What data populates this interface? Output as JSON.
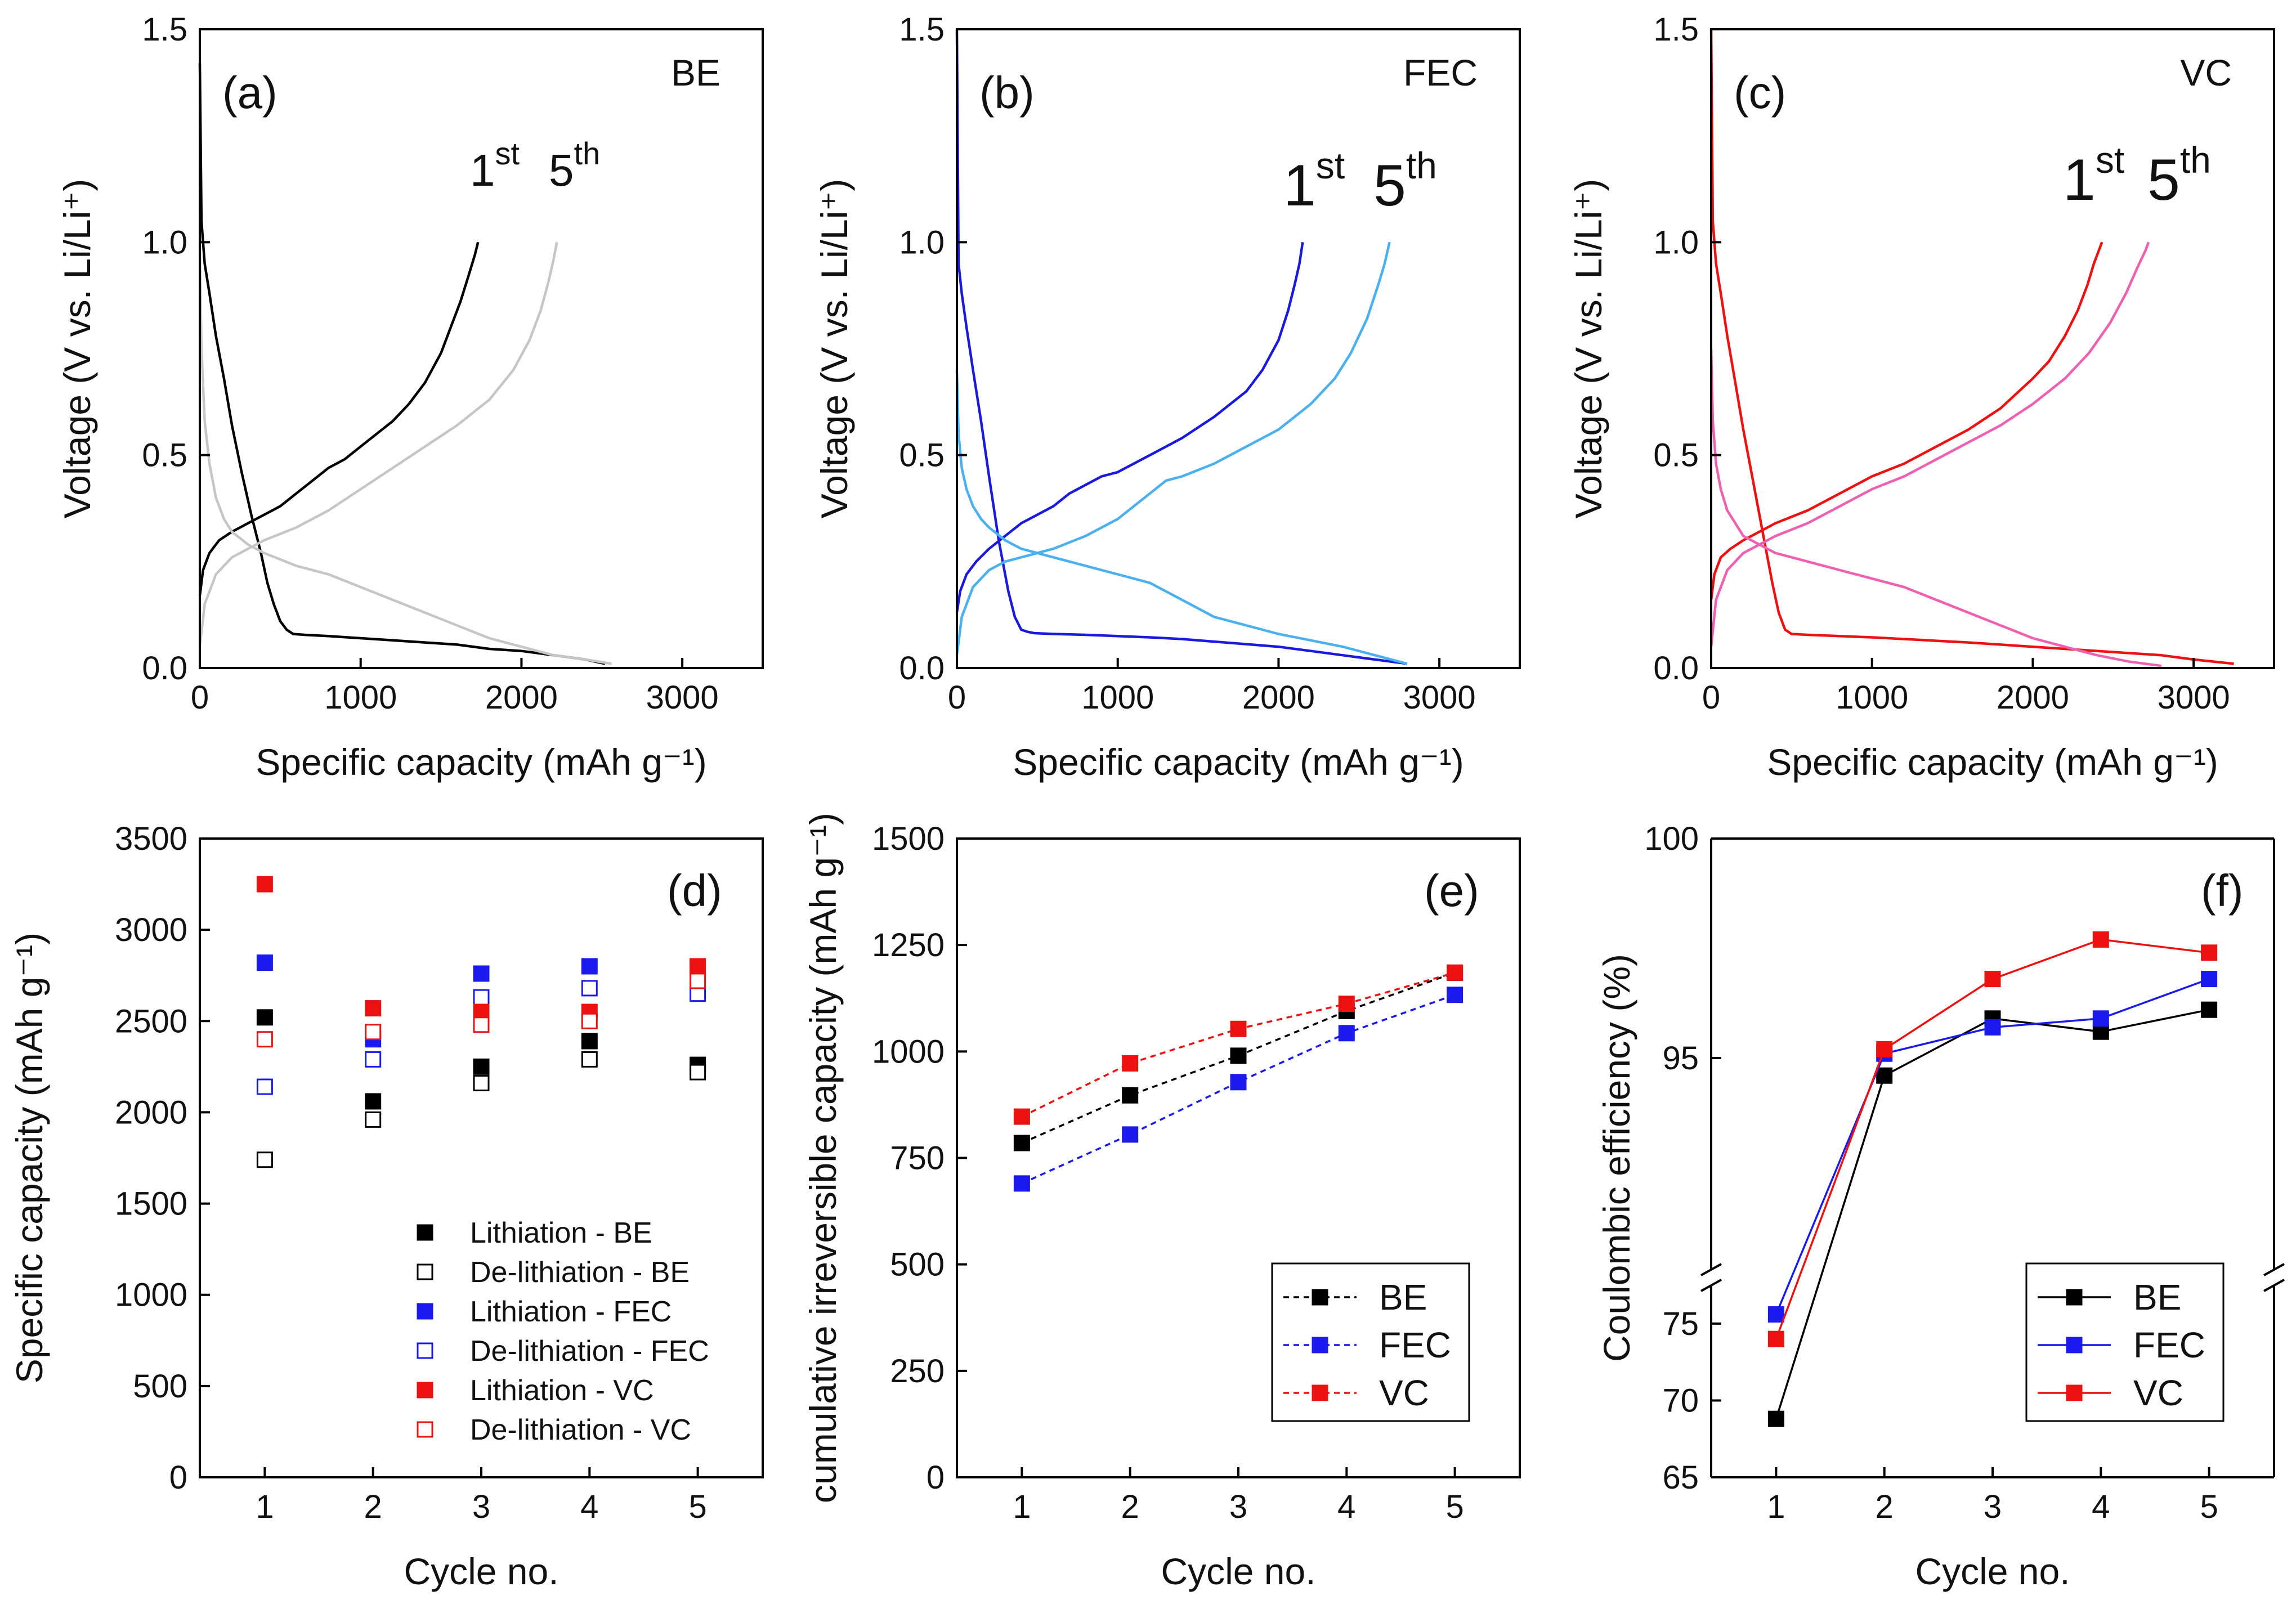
{
  "panels": {
    "a": {
      "type": "line",
      "label": "(a)",
      "tag": "BE",
      "xlabel": "Specific capacity (mAh g⁻¹)",
      "ylabel": "Voltage (V vs. Li/Li⁺)",
      "xlim": [
        0,
        3500
      ],
      "ylim": [
        0,
        1.5
      ],
      "xticks": [
        0,
        1000,
        2000,
        3000
      ],
      "yticks": [
        0.0,
        0.5,
        1.0,
        1.5
      ],
      "cycle_labels": [
        {
          "base": "1",
          "sup": "st",
          "color": "#000000"
        },
        {
          "base": "5",
          "sup": "th",
          "color": "#9a9a9a"
        }
      ],
      "series": [
        {
          "name": "1st lithiation",
          "color": "#000000",
          "x": [
            0,
            10,
            30,
            60,
            100,
            150,
            200,
            260,
            320,
            380,
            420,
            460,
            500,
            540,
            580,
            650,
            800,
            1000,
            1200,
            1400,
            1600,
            1800,
            2000,
            2200,
            2400,
            2520
          ],
          "y": [
            1.42,
            1.05,
            0.95,
            0.88,
            0.78,
            0.68,
            0.57,
            0.46,
            0.36,
            0.27,
            0.2,
            0.15,
            0.11,
            0.09,
            0.08,
            0.078,
            0.075,
            0.07,
            0.065,
            0.06,
            0.055,
            0.045,
            0.04,
            0.03,
            0.02,
            0.01
          ]
        },
        {
          "name": "1st delithiation",
          "color": "#000000",
          "x": [
            0,
            20,
            60,
            120,
            200,
            300,
            400,
            500,
            600,
            700,
            800,
            900,
            1000,
            1100,
            1200,
            1300,
            1400,
            1500,
            1560,
            1620,
            1670,
            1710,
            1730
          ],
          "y": [
            0.17,
            0.23,
            0.27,
            0.3,
            0.32,
            0.34,
            0.36,
            0.38,
            0.41,
            0.44,
            0.47,
            0.49,
            0.52,
            0.55,
            0.58,
            0.62,
            0.67,
            0.74,
            0.8,
            0.86,
            0.92,
            0.97,
            1.0
          ]
        },
        {
          "name": "5th lithiation",
          "color": "#c6c6c6",
          "x": [
            0,
            10,
            30,
            60,
            100,
            150,
            200,
            300,
            400,
            500,
            600,
            800,
            1000,
            1200,
            1400,
            1600,
            1800,
            2000,
            2200,
            2400,
            2560
          ],
          "y": [
            1.0,
            0.75,
            0.58,
            0.48,
            0.4,
            0.35,
            0.32,
            0.29,
            0.27,
            0.255,
            0.24,
            0.22,
            0.19,
            0.16,
            0.13,
            0.1,
            0.07,
            0.05,
            0.03,
            0.02,
            0.01
          ]
        },
        {
          "name": "5th delithiation",
          "color": "#c6c6c6",
          "x": [
            0,
            30,
            100,
            200,
            300,
            400,
            600,
            800,
            1000,
            1200,
            1400,
            1600,
            1800,
            1950,
            2050,
            2120,
            2170,
            2200,
            2220
          ],
          "y": [
            0.05,
            0.15,
            0.22,
            0.26,
            0.28,
            0.3,
            0.33,
            0.37,
            0.42,
            0.47,
            0.52,
            0.57,
            0.63,
            0.7,
            0.77,
            0.84,
            0.91,
            0.96,
            1.0
          ]
        }
      ]
    },
    "b": {
      "type": "line",
      "label": "(b)",
      "tag": "FEC",
      "xlabel": "Specific capacity (mAh g⁻¹)",
      "ylabel": "Voltage (V vs. Li/Li⁺)",
      "xlim": [
        0,
        3500
      ],
      "ylim": [
        0,
        1.5
      ],
      "xticks": [
        0,
        1000,
        2000,
        3000
      ],
      "yticks": [
        0.0,
        0.5,
        1.0,
        1.5
      ],
      "cycle_labels": [
        {
          "base": "1",
          "sup": "st",
          "color": "#1a1adf"
        },
        {
          "base": "5",
          "sup": "th",
          "color": "#4bb0f0"
        }
      ],
      "series": [
        {
          "name": "1st lithiation",
          "color": "#1a1adf",
          "x": [
            0,
            10,
            30,
            60,
            100,
            150,
            200,
            260,
            320,
            360,
            400,
            440,
            480,
            600,
            800,
            1000,
            1200,
            1400,
            1600,
            1800,
            2000,
            2200,
            2400,
            2600,
            2800
          ],
          "y": [
            1.5,
            0.95,
            0.88,
            0.8,
            0.7,
            0.58,
            0.45,
            0.3,
            0.18,
            0.12,
            0.09,
            0.085,
            0.082,
            0.08,
            0.078,
            0.075,
            0.072,
            0.068,
            0.062,
            0.056,
            0.05,
            0.04,
            0.03,
            0.02,
            0.01
          ]
        },
        {
          "name": "1st delithiation",
          "color": "#1a1adf",
          "x": [
            0,
            20,
            60,
            120,
            200,
            300,
            400,
            500,
            600,
            700,
            800,
            900,
            1000,
            1200,
            1400,
            1600,
            1800,
            1900,
            2000,
            2060,
            2100,
            2130,
            2150
          ],
          "y": [
            0.13,
            0.18,
            0.22,
            0.25,
            0.28,
            0.31,
            0.34,
            0.36,
            0.38,
            0.41,
            0.43,
            0.45,
            0.46,
            0.5,
            0.54,
            0.59,
            0.65,
            0.7,
            0.77,
            0.84,
            0.9,
            0.95,
            1.0
          ]
        },
        {
          "name": "5th lithiation",
          "color": "#4bb0f0",
          "x": [
            0,
            10,
            30,
            60,
            100,
            150,
            200,
            300,
            400,
            500,
            600,
            800,
            1000,
            1200,
            1400,
            1600,
            1800,
            2000,
            2200,
            2400,
            2600,
            2800
          ],
          "y": [
            0.7,
            0.55,
            0.47,
            0.42,
            0.38,
            0.35,
            0.33,
            0.3,
            0.28,
            0.27,
            0.26,
            0.24,
            0.22,
            0.2,
            0.16,
            0.12,
            0.1,
            0.08,
            0.065,
            0.05,
            0.03,
            0.01
          ]
        },
        {
          "name": "5th delithiation",
          "color": "#4bb0f0",
          "x": [
            0,
            30,
            100,
            200,
            300,
            400,
            600,
            800,
            1000,
            1200,
            1300,
            1400,
            1600,
            1800,
            2000,
            2200,
            2350,
            2450,
            2550,
            2620,
            2660,
            2690
          ],
          "y": [
            0.03,
            0.12,
            0.19,
            0.23,
            0.25,
            0.26,
            0.28,
            0.31,
            0.35,
            0.41,
            0.44,
            0.45,
            0.48,
            0.52,
            0.56,
            0.62,
            0.68,
            0.74,
            0.82,
            0.9,
            0.95,
            1.0
          ]
        }
      ]
    },
    "c": {
      "type": "line",
      "label": "(c)",
      "tag": "VC",
      "xlabel": "Specific capacity (mAh g⁻¹)",
      "ylabel": "Voltage (V vs. Li/Li⁺)",
      "xlim": [
        0,
        3500
      ],
      "ylim": [
        0,
        1.5
      ],
      "xticks": [
        0,
        1000,
        2000,
        3000
      ],
      "yticks": [
        0.0,
        0.5,
        1.0,
        1.5
      ],
      "cycle_labels": [
        {
          "base": "1",
          "sup": "st",
          "color": "#ee1111"
        },
        {
          "base": "5",
          "sup": "th",
          "color": "#f060b0"
        }
      ],
      "series": [
        {
          "name": "1st lithiation",
          "color": "#ee1111",
          "x": [
            0,
            10,
            30,
            60,
            100,
            150,
            200,
            260,
            320,
            380,
            420,
            460,
            500,
            600,
            800,
            1000,
            1200,
            1400,
            1600,
            1800,
            2000,
            2200,
            2400,
            2600,
            2800,
            3000,
            3250
          ],
          "y": [
            1.5,
            1.05,
            0.95,
            0.88,
            0.78,
            0.67,
            0.56,
            0.44,
            0.32,
            0.2,
            0.13,
            0.09,
            0.08,
            0.078,
            0.075,
            0.072,
            0.068,
            0.064,
            0.06,
            0.055,
            0.05,
            0.045,
            0.04,
            0.035,
            0.03,
            0.02,
            0.01
          ]
        },
        {
          "name": "1st delithiation",
          "color": "#ee1111",
          "x": [
            0,
            20,
            60,
            120,
            200,
            300,
            400,
            600,
            800,
            1000,
            1200,
            1400,
            1600,
            1800,
            2000,
            2100,
            2200,
            2280,
            2340,
            2380,
            2410,
            2430
          ],
          "y": [
            0.16,
            0.22,
            0.26,
            0.28,
            0.3,
            0.32,
            0.34,
            0.37,
            0.41,
            0.45,
            0.48,
            0.52,
            0.56,
            0.61,
            0.68,
            0.72,
            0.78,
            0.84,
            0.9,
            0.95,
            0.98,
            1.0
          ]
        },
        {
          "name": "5th lithiation",
          "color": "#f060b0",
          "x": [
            0,
            10,
            30,
            60,
            100,
            150,
            200,
            300,
            400,
            600,
            800,
            1000,
            1200,
            1400,
            1600,
            1800,
            2000,
            2200,
            2400,
            2600,
            2800
          ],
          "y": [
            0.75,
            0.58,
            0.48,
            0.42,
            0.37,
            0.34,
            0.31,
            0.29,
            0.27,
            0.25,
            0.23,
            0.21,
            0.19,
            0.16,
            0.13,
            0.1,
            0.07,
            0.05,
            0.03,
            0.015,
            0.005
          ]
        },
        {
          "name": "5th delithiation",
          "color": "#f060b0",
          "x": [
            0,
            30,
            100,
            200,
            300,
            400,
            600,
            800,
            1000,
            1200,
            1400,
            1600,
            1800,
            2000,
            2200,
            2350,
            2480,
            2580,
            2650,
            2700,
            2720
          ],
          "y": [
            0.05,
            0.16,
            0.23,
            0.27,
            0.29,
            0.31,
            0.34,
            0.38,
            0.42,
            0.45,
            0.49,
            0.53,
            0.57,
            0.62,
            0.68,
            0.74,
            0.81,
            0.88,
            0.94,
            0.98,
            1.0
          ]
        }
      ]
    },
    "d": {
      "type": "scatter",
      "label": "(d)",
      "xlabel": "Cycle no.",
      "ylabel": "Specific capacity (mAh g⁻¹)",
      "xlim": [
        0.4,
        5.6
      ],
      "ylim": [
        0,
        3500
      ],
      "xticks": [
        1,
        2,
        3,
        4,
        5
      ],
      "yticks": [
        0,
        500,
        1000,
        1500,
        2000,
        2500,
        3000,
        3500
      ],
      "legend_position": "bottom-right",
      "series": [
        {
          "name": "Lithiation - BE",
          "color": "#000000",
          "filled": true,
          "x": [
            1,
            2,
            3,
            4,
            5
          ],
          "values": [
            2520,
            2060,
            2250,
            2390,
            2260
          ]
        },
        {
          "name": "De-lithiation - BE",
          "color": "#000000",
          "filled": false,
          "x": [
            1,
            2,
            3,
            4,
            5
          ],
          "values": [
            1740,
            1960,
            2160,
            2290,
            2220
          ]
        },
        {
          "name": "Lithiation - FEC",
          "color": "#1a1aee",
          "filled": true,
          "x": [
            1,
            2,
            3,
            4,
            5
          ],
          "values": [
            2820,
            2400,
            2760,
            2800,
            2790
          ]
        },
        {
          "name": "De-lithiation - FEC",
          "color": "#1a1aee",
          "filled": false,
          "x": [
            1,
            2,
            3,
            4,
            5
          ],
          "values": [
            2140,
            2290,
            2630,
            2680,
            2650
          ]
        },
        {
          "name": "Lithiation - VC",
          "color": "#ee1111",
          "filled": true,
          "x": [
            1,
            2,
            3,
            4,
            5
          ],
          "values": [
            3250,
            2570,
            2550,
            2550,
            2800
          ]
        },
        {
          "name": "De-lithiation - VC",
          "color": "#ee1111",
          "filled": false,
          "x": [
            1,
            2,
            3,
            4,
            5
          ],
          "values": [
            2400,
            2440,
            2480,
            2500,
            2720
          ]
        }
      ]
    },
    "e": {
      "type": "line",
      "label": "(e)",
      "xlabel": "Cycle no.",
      "ylabel": "cumulative irreversible capacity (mAh g⁻¹)",
      "xlim": [
        0.4,
        5.6
      ],
      "ylim": [
        0,
        1500
      ],
      "xticks": [
        1,
        2,
        3,
        4,
        5
      ],
      "yticks": [
        0,
        250,
        500,
        750,
        1000,
        1250,
        1500
      ],
      "legend_position": "bottom-right",
      "series": [
        {
          "name": "BE",
          "color": "#000000",
          "dashed": true,
          "x": [
            1,
            2,
            3,
            4,
            5
          ],
          "values": [
            785,
            897,
            990,
            1095,
            1185
          ]
        },
        {
          "name": "FEC",
          "color": "#1a1aee",
          "dashed": true,
          "x": [
            1,
            2,
            3,
            4,
            5
          ],
          "values": [
            690,
            805,
            928,
            1043,
            1133
          ]
        },
        {
          "name": "VC",
          "color": "#ee1111",
          "dashed": true,
          "x": [
            1,
            2,
            3,
            4,
            5
          ],
          "values": [
            847,
            972,
            1053,
            1112,
            1185
          ]
        }
      ]
    },
    "f": {
      "type": "line",
      "label": "(f)",
      "xlabel": "Cycle no.",
      "ylabel": "Coulombic efficiency (%)",
      "xlim": [
        0.4,
        5.6
      ],
      "broken_axis": {
        "lower": [
          65,
          78
        ],
        "upper": [
          90,
          100
        ]
      },
      "xticks": [
        1,
        2,
        3,
        4,
        5
      ],
      "yticks_lower": [
        65,
        70,
        75
      ],
      "yticks_upper": [
        95,
        100
      ],
      "legend_position": "bottom-right",
      "series": [
        {
          "name": "BE",
          "color": "#000000",
          "dashed": false,
          "x": [
            1,
            2,
            3,
            4,
            5
          ],
          "values": [
            68.8,
            94.6,
            95.9,
            95.6,
            96.1
          ]
        },
        {
          "name": "FEC",
          "color": "#1a1aee",
          "dashed": false,
          "x": [
            1,
            2,
            3,
            4,
            5
          ],
          "values": [
            75.6,
            95.1,
            95.7,
            95.9,
            96.8
          ]
        },
        {
          "name": "VC",
          "color": "#ee1111",
          "dashed": false,
          "x": [
            1,
            2,
            3,
            4,
            5
          ],
          "values": [
            74.0,
            95.2,
            96.8,
            97.7,
            97.4
          ]
        }
      ]
    }
  }
}
